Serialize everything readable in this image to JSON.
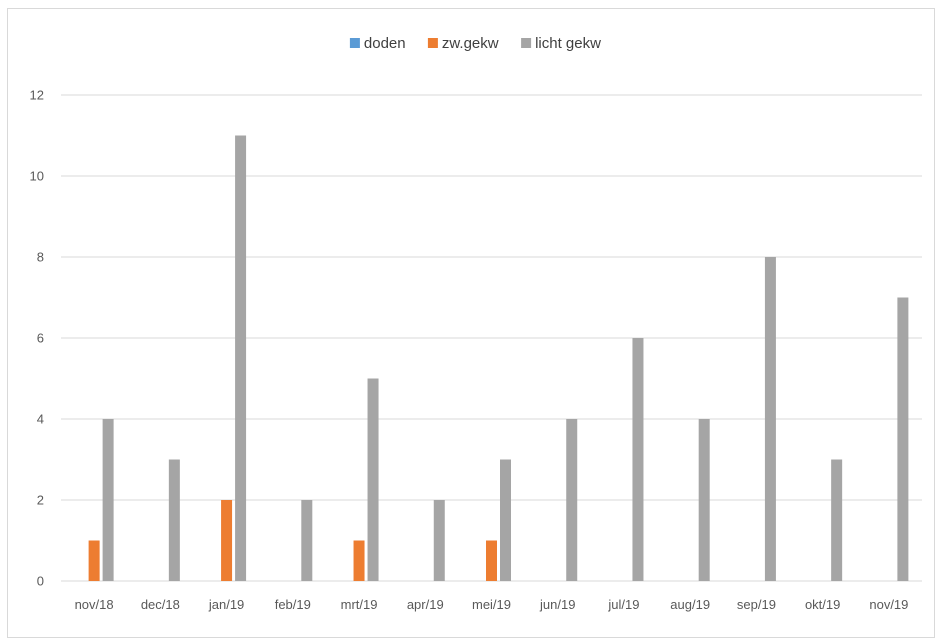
{
  "chart_data": {
    "type": "bar",
    "categories": [
      "nov/18",
      "dec/18",
      "jan/19",
      "feb/19",
      "mrt/19",
      "apr/19",
      "mei/19",
      "jun/19",
      "jul/19",
      "aug/19",
      "sep/19",
      "okt/19",
      "nov/19"
    ],
    "series": [
      {
        "name": "doden",
        "color": "#5b9bd5",
        "values": [
          0,
          0,
          0,
          0,
          0,
          0,
          0,
          0,
          0,
          0,
          0,
          0,
          0
        ]
      },
      {
        "name": "zw.gekw",
        "color": "#ed7d31",
        "values": [
          1,
          0,
          2,
          0,
          1,
          0,
          1,
          0,
          0,
          0,
          0,
          0,
          0
        ]
      },
      {
        "name": "licht gekw",
        "color": "#a5a5a5",
        "values": [
          4,
          3,
          11,
          2,
          5,
          2,
          3,
          4,
          6,
          4,
          8,
          3,
          7
        ]
      }
    ],
    "y_ticks": [
      "0",
      "2",
      "4",
      "6",
      "8",
      "10",
      "12"
    ],
    "ylim": [
      0,
      12
    ],
    "grid": true,
    "legend": "top-center",
    "title": "",
    "xlabel": "",
    "ylabel": ""
  }
}
